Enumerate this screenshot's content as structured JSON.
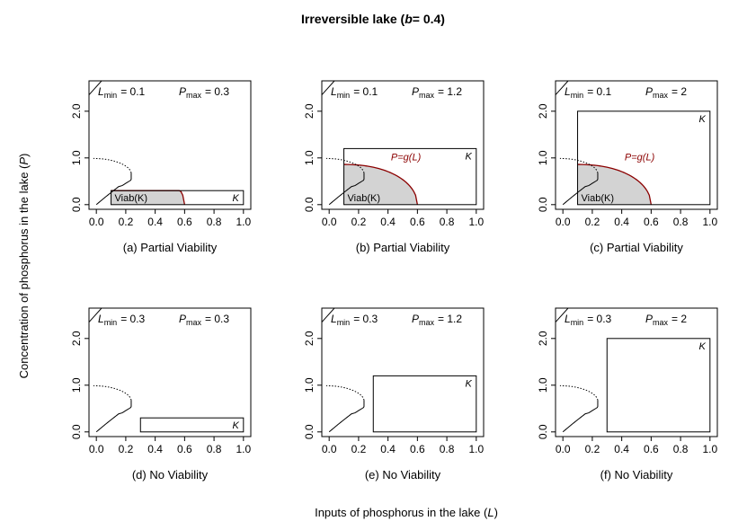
{
  "figure": {
    "title_prefix": "Irreversible lake (",
    "title_b": "b",
    "title_suffix": "= 0.4)",
    "xlabel_prefix": "Inputs of phosphorus in the lake (",
    "xlabel_var": "L",
    "xlabel_suffix": ")",
    "ylabel_prefix": "Concentration of phosphorus in the lake (",
    "ylabel_var": "P",
    "ylabel_suffix": ")"
  },
  "chart_data": [
    {
      "type": "line",
      "caption": "(a) Partial Viability",
      "lmin_label": "L",
      "lmin_sub": "min",
      "lmin_value": "= 0.1",
      "pmax_label": "P",
      "pmax_sub": "max",
      "pmax_value": "= 0.3",
      "Lmin": 0.1,
      "Lmax": 1.0,
      "Pmax": 0.3,
      "viability": "partial",
      "k_label": "K",
      "viab_label": "Viab(K)",
      "curve_label": "",
      "xticks": [
        "0.0",
        "0.2",
        "0.4",
        "0.6",
        "0.8",
        "1.0"
      ],
      "yticks": [
        "0.0",
        "1.0",
        "2.0"
      ],
      "xlim": [
        -0.05,
        1.05
      ],
      "ylim": [
        -0.1,
        2.65
      ]
    },
    {
      "type": "line",
      "caption": "(b) Partial Viability",
      "lmin_label": "L",
      "lmin_sub": "min",
      "lmin_value": "= 0.1",
      "pmax_label": "P",
      "pmax_sub": "max",
      "pmax_value": "= 1.2",
      "Lmin": 0.1,
      "Lmax": 1.0,
      "Pmax": 1.2,
      "viability": "partial",
      "k_label": "K",
      "viab_label": "Viab(K)",
      "curve_label": "P=g(L)",
      "xticks": [
        "0.0",
        "0.2",
        "0.4",
        "0.6",
        "0.8",
        "1.0"
      ],
      "yticks": [
        "0.0",
        "1.0",
        "2.0"
      ],
      "xlim": [
        -0.05,
        1.05
      ],
      "ylim": [
        -0.1,
        2.65
      ]
    },
    {
      "type": "line",
      "caption": "(c) Partial Viability",
      "lmin_label": "L",
      "lmin_sub": "min",
      "lmin_value": "= 0.1",
      "pmax_label": "P",
      "pmax_sub": "max",
      "pmax_value": "= 2",
      "Lmin": 0.1,
      "Lmax": 1.0,
      "Pmax": 2.0,
      "viability": "partial",
      "k_label": "K",
      "viab_label": "Viab(K)",
      "curve_label": "P=g(L)",
      "xticks": [
        "0.0",
        "0.2",
        "0.4",
        "0.6",
        "0.8",
        "1.0"
      ],
      "yticks": [
        "0.0",
        "1.0",
        "2.0"
      ],
      "xlim": [
        -0.05,
        1.05
      ],
      "ylim": [
        -0.1,
        2.65
      ]
    },
    {
      "type": "line",
      "caption": "(d) No Viability",
      "lmin_label": "L",
      "lmin_sub": "min",
      "lmin_value": "= 0.3",
      "pmax_label": "P",
      "pmax_sub": "max",
      "pmax_value": "= 0.3",
      "Lmin": 0.3,
      "Lmax": 1.0,
      "Pmax": 0.3,
      "viability": "none",
      "k_label": "K",
      "viab_label": "",
      "curve_label": "",
      "xticks": [
        "0.0",
        "0.2",
        "0.4",
        "0.6",
        "0.8",
        "1.0"
      ],
      "yticks": [
        "0.0",
        "1.0",
        "2.0"
      ],
      "xlim": [
        -0.05,
        1.05
      ],
      "ylim": [
        -0.1,
        2.65
      ]
    },
    {
      "type": "line",
      "caption": "(e) No Viability",
      "lmin_label": "L",
      "lmin_sub": "min",
      "lmin_value": "= 0.3",
      "pmax_label": "P",
      "pmax_sub": "max",
      "pmax_value": "= 1.2",
      "Lmin": 0.3,
      "Lmax": 1.0,
      "Pmax": 1.2,
      "viability": "none",
      "k_label": "K",
      "viab_label": "",
      "curve_label": "",
      "xticks": [
        "0.0",
        "0.2",
        "0.4",
        "0.6",
        "0.8",
        "1.0"
      ],
      "yticks": [
        "0.0",
        "1.0",
        "2.0"
      ],
      "xlim": [
        -0.05,
        1.05
      ],
      "ylim": [
        -0.1,
        2.65
      ]
    },
    {
      "type": "line",
      "caption": "(f) No Viability",
      "lmin_label": "L",
      "lmin_sub": "min",
      "lmin_value": "= 0.3",
      "pmax_label": "P",
      "pmax_sub": "max",
      "pmax_value": "= 2",
      "Lmin": 0.3,
      "Lmax": 1.0,
      "Pmax": 2.0,
      "viability": "none",
      "k_label": "K",
      "viab_label": "",
      "curve_label": "",
      "xticks": [
        "0.0",
        "0.2",
        "0.4",
        "0.6",
        "0.8",
        "1.0"
      ],
      "yticks": [
        "0.0",
        "1.0",
        "2.0"
      ],
      "xlim": [
        -0.05,
        1.05
      ],
      "ylim": [
        -0.1,
        2.65
      ]
    }
  ],
  "colors": {
    "axis": "#000000",
    "viable_fill": "#d3d3d3",
    "equilibrium_curve": "#8b0000",
    "curve_label": "#8b0000"
  }
}
